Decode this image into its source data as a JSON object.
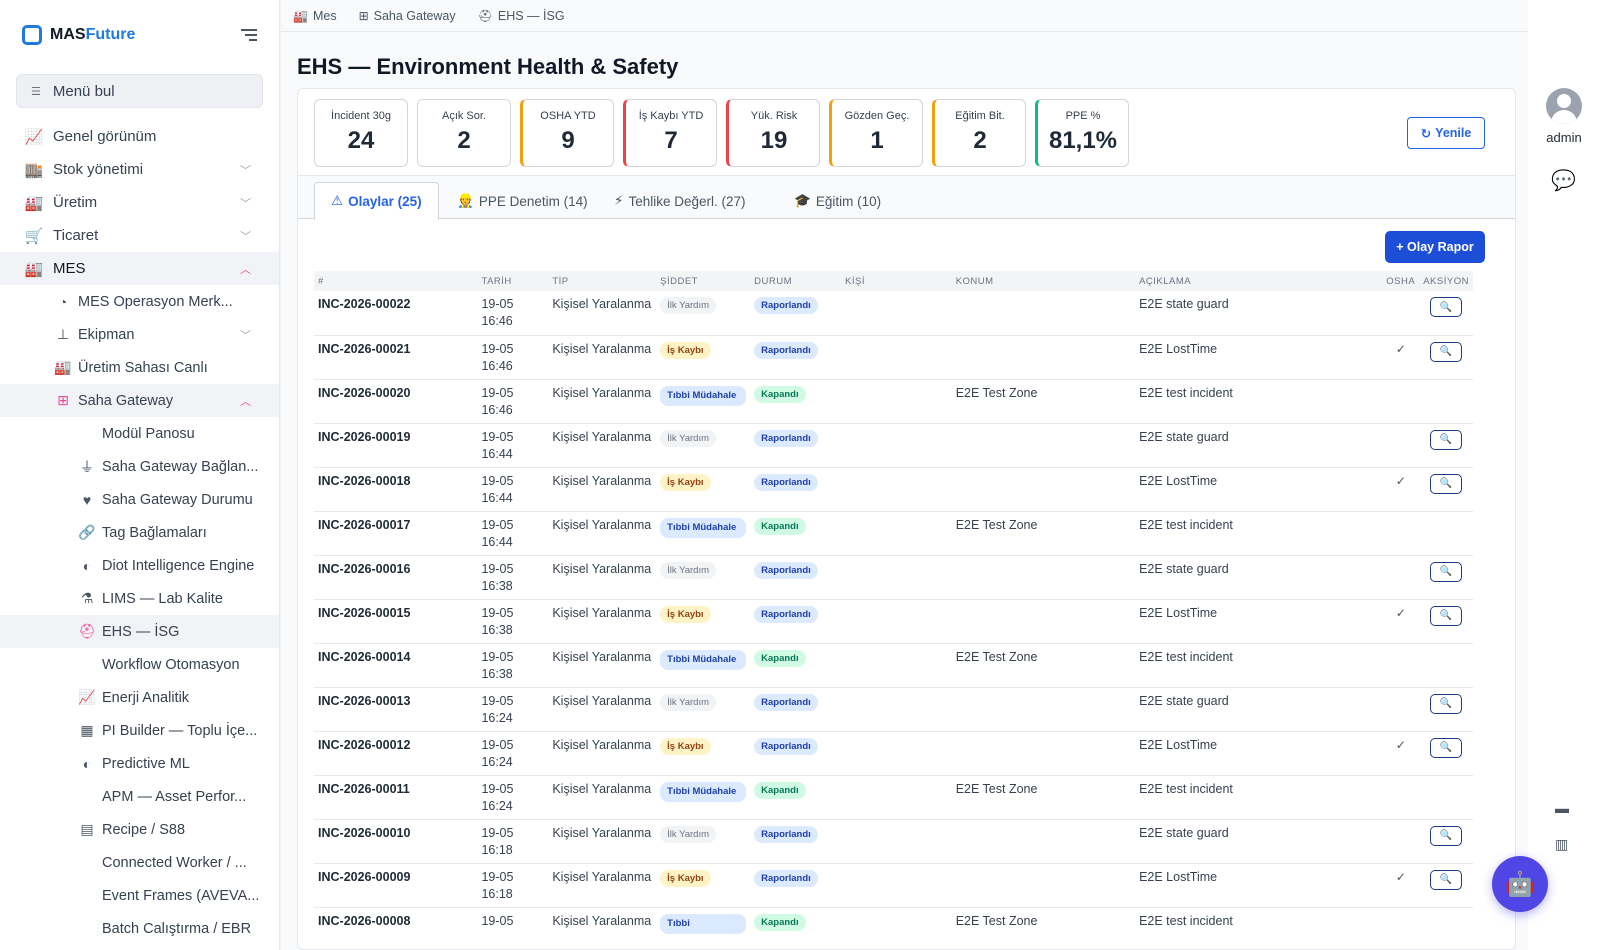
{
  "brand": {
    "name_part1": "MAS",
    "name_part2": "Future"
  },
  "sidebar": {
    "search_label": "Menü bul",
    "items": [
      {
        "label": "Genel görünüm",
        "icon": "chart-line-icon"
      },
      {
        "label": "Stok yönetimi",
        "icon": "warehouse-icon"
      },
      {
        "label": "Üretim",
        "icon": "factory-icon"
      },
      {
        "label": "Ticaret",
        "icon": "cart-icon"
      },
      {
        "label": "MES",
        "icon": "industry-icon"
      }
    ],
    "mes_children": [
      {
        "label": "MES Operasyon Merk...",
        "icon": "gauge-icon"
      },
      {
        "label": "Ekipman",
        "icon": "hierarchy-icon"
      },
      {
        "label": "Üretim Sahası Canlı",
        "icon": "factory-icon"
      },
      {
        "label": "Saha Gateway",
        "icon": "network-icon"
      }
    ],
    "gateway_children": [
      {
        "label": "Modül Panosu",
        "icon": ""
      },
      {
        "label": "Saha Gateway Bağlan...",
        "icon": "plug-icon"
      },
      {
        "label": "Saha Gateway Durumu",
        "icon": "heartbeat-icon"
      },
      {
        "label": "Tag Bağlamaları",
        "icon": "link-icon"
      },
      {
        "label": "Diot Intelligence Engine",
        "icon": "brain-icon"
      },
      {
        "label": "LIMS — Lab Kalite",
        "icon": "flask-icon"
      },
      {
        "label": "EHS — İSG",
        "icon": "helmet-icon"
      },
      {
        "label": "Workflow Otomasyon",
        "icon": ""
      },
      {
        "label": "Enerji Analitik",
        "icon": "chart-line-icon"
      },
      {
        "label": "PI Builder — Toplu İçe...",
        "icon": "table-icon"
      },
      {
        "label": "Predictive ML",
        "icon": "brain-icon"
      },
      {
        "label": "APM — Asset Perfor...",
        "icon": ""
      },
      {
        "label": "Recipe / S88",
        "icon": "book-icon"
      },
      {
        "label": "Connected Worker / ...",
        "icon": ""
      },
      {
        "label": "Event Frames (AVEVA...",
        "icon": ""
      },
      {
        "label": "Batch Calıştırma / EBR",
        "icon": ""
      }
    ]
  },
  "breadcrumb": [
    {
      "label": "Mes",
      "icon": "industry-icon"
    },
    {
      "label": "Saha Gateway",
      "icon": "network-icon"
    },
    {
      "label": "EHS — İSG",
      "icon": "helmet-icon"
    }
  ],
  "page": {
    "title": "EHS — Environment Health & Safety"
  },
  "kpis": [
    {
      "label": "İncident 30g",
      "value": "24",
      "accent": "none"
    },
    {
      "label": "Açık Sor.",
      "value": "2",
      "accent": "none"
    },
    {
      "label": "OSHA YTD",
      "value": "9",
      "accent": "orange"
    },
    {
      "label": "İş Kaybı YTD",
      "value": "7",
      "accent": "red"
    },
    {
      "label": "Yük. Risk",
      "value": "19",
      "accent": "red"
    },
    {
      "label": "Gözden Geç.",
      "value": "1",
      "accent": "orange"
    },
    {
      "label": "Eğitim Bit.",
      "value": "2",
      "accent": "orange"
    },
    {
      "label": "PPE %",
      "value": "81,1%",
      "accent": "green"
    }
  ],
  "refresh_label": "Yenile",
  "tabs": [
    {
      "label": "Olaylar (25)",
      "icon": "⚠"
    },
    {
      "label": "PPE Denetim (14)",
      "icon": "👷"
    },
    {
      "label": "Tehlike Değerl. (27)",
      "icon": "⚡"
    },
    {
      "label": "Eğitim (10)",
      "icon": "🎓"
    }
  ],
  "report_button": "+ Olay Rapor",
  "table": {
    "headers": [
      "#",
      "TARİH",
      "TİP",
      "ŞİDDET",
      "DURUM",
      "KİŞİ",
      "KONUM",
      "AÇIKLAMA",
      "OSHA",
      "AKSİYON"
    ],
    "rows": [
      {
        "id": "INC-2026-00022",
        "date": "19-05",
        "time": "16:46",
        "type": "Kişisel Yaralanma",
        "severity": "İlk Yardım",
        "sev": "ilk",
        "status": "Raporlandı",
        "st": "rap",
        "person": "",
        "location": "",
        "desc": "E2E state guard",
        "osha": "",
        "action": true
      },
      {
        "id": "INC-2026-00021",
        "date": "19-05",
        "time": "16:46",
        "type": "Kişisel Yaralanma",
        "severity": "İş Kaybı",
        "sev": "is",
        "status": "Raporlandı",
        "st": "rap",
        "person": "",
        "location": "",
        "desc": "E2E LostTime",
        "osha": "✓",
        "action": true
      },
      {
        "id": "INC-2026-00020",
        "date": "19-05",
        "time": "16:46",
        "type": "Kişisel Yaralanma",
        "severity": "Tıbbi Müdahale",
        "sev": "tib",
        "status": "Kapandı",
        "st": "kap",
        "person": "",
        "location": "E2E Test Zone",
        "desc": "E2E test incident",
        "osha": "",
        "action": false
      },
      {
        "id": "INC-2026-00019",
        "date": "19-05",
        "time": "16:44",
        "type": "Kişisel Yaralanma",
        "severity": "İlk Yardım",
        "sev": "ilk",
        "status": "Raporlandı",
        "st": "rap",
        "person": "",
        "location": "",
        "desc": "E2E state guard",
        "osha": "",
        "action": true
      },
      {
        "id": "INC-2026-00018",
        "date": "19-05",
        "time": "16:44",
        "type": "Kişisel Yaralanma",
        "severity": "İş Kaybı",
        "sev": "is",
        "status": "Raporlandı",
        "st": "rap",
        "person": "",
        "location": "",
        "desc": "E2E LostTime",
        "osha": "✓",
        "action": true
      },
      {
        "id": "INC-2026-00017",
        "date": "19-05",
        "time": "16:44",
        "type": "Kişisel Yaralanma",
        "severity": "Tıbbi Müdahale",
        "sev": "tib",
        "status": "Kapandı",
        "st": "kap",
        "person": "",
        "location": "E2E Test Zone",
        "desc": "E2E test incident",
        "osha": "",
        "action": false
      },
      {
        "id": "INC-2026-00016",
        "date": "19-05",
        "time": "16:38",
        "type": "Kişisel Yaralanma",
        "severity": "İlk Yardım",
        "sev": "ilk",
        "status": "Raporlandı",
        "st": "rap",
        "person": "",
        "location": "",
        "desc": "E2E state guard",
        "osha": "",
        "action": true
      },
      {
        "id": "INC-2026-00015",
        "date": "19-05",
        "time": "16:38",
        "type": "Kişisel Yaralanma",
        "severity": "İş Kaybı",
        "sev": "is",
        "status": "Raporlandı",
        "st": "rap",
        "person": "",
        "location": "",
        "desc": "E2E LostTime",
        "osha": "✓",
        "action": true
      },
      {
        "id": "INC-2026-00014",
        "date": "19-05",
        "time": "16:38",
        "type": "Kişisel Yaralanma",
        "severity": "Tıbbi Müdahale",
        "sev": "tib",
        "status": "Kapandı",
        "st": "kap",
        "person": "",
        "location": "E2E Test Zone",
        "desc": "E2E test incident",
        "osha": "",
        "action": false
      },
      {
        "id": "INC-2026-00013",
        "date": "19-05",
        "time": "16:24",
        "type": "Kişisel Yaralanma",
        "severity": "İlk Yardım",
        "sev": "ilk",
        "status": "Raporlandı",
        "st": "rap",
        "person": "",
        "location": "",
        "desc": "E2E state guard",
        "osha": "",
        "action": true
      },
      {
        "id": "INC-2026-00012",
        "date": "19-05",
        "time": "16:24",
        "type": "Kişisel Yaralanma",
        "severity": "İş Kaybı",
        "sev": "is",
        "status": "Raporlandı",
        "st": "rap",
        "person": "",
        "location": "",
        "desc": "E2E LostTime",
        "osha": "✓",
        "action": true
      },
      {
        "id": "INC-2026-00011",
        "date": "19-05",
        "time": "16:24",
        "type": "Kişisel Yaralanma",
        "severity": "Tıbbi Müdahale",
        "sev": "tib",
        "status": "Kapandı",
        "st": "kap",
        "person": "",
        "location": "E2E Test Zone",
        "desc": "E2E test incident",
        "osha": "",
        "action": false
      },
      {
        "id": "INC-2026-00010",
        "date": "19-05",
        "time": "16:18",
        "type": "Kişisel Yaralanma",
        "severity": "İlk Yardım",
        "sev": "ilk",
        "status": "Raporlandı",
        "st": "rap",
        "person": "",
        "location": "",
        "desc": "E2E state guard",
        "osha": "",
        "action": true
      },
      {
        "id": "INC-2026-00009",
        "date": "19-05",
        "time": "16:18",
        "type": "Kişisel Yaralanma",
        "severity": "İş Kaybı",
        "sev": "is",
        "status": "Raporlandı",
        "st": "rap",
        "person": "",
        "location": "",
        "desc": "E2E LostTime",
        "osha": "✓",
        "action": true
      },
      {
        "id": "INC-2026-00008",
        "date": "19-05",
        "time": "",
        "type": "Kişisel Yaralanma",
        "severity": "Tıbbi",
        "sev": "tib",
        "status": "Kapandı",
        "st": "kap",
        "person": "",
        "location": "E2E Test Zone",
        "desc": "E2E test incident",
        "osha": "",
        "action": false
      }
    ]
  },
  "rail": {
    "user": "admin"
  },
  "colors": {
    "accent": "#2563eb",
    "active_menu": "#ec4899",
    "bot": "#4f46e5"
  }
}
